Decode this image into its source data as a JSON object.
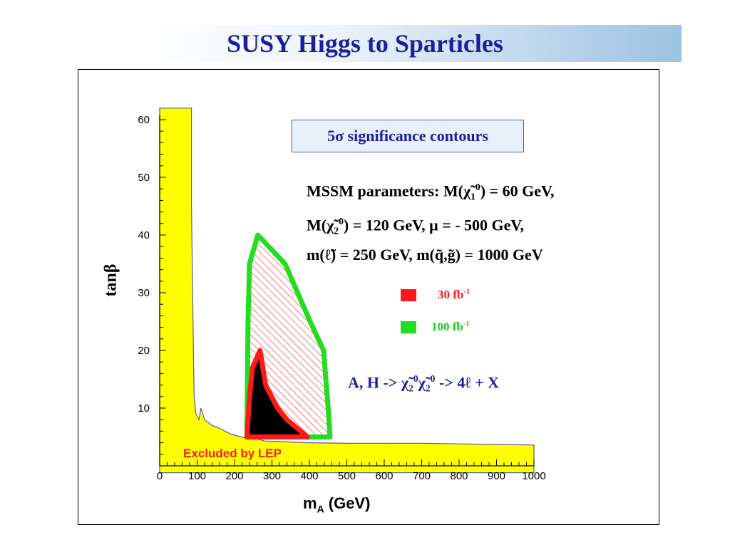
{
  "slide": {
    "title": "SUSY Higgs to Sparticles"
  },
  "annotations": {
    "significance": "5σ significance contours",
    "params_line1_a": "MSSM parameters: M(",
    "chi1": "χ̃",
    "chi1_sub": "1",
    "chi1_sup": "0",
    "params_line1_b": ") = 60 GeV,",
    "params_line2_a": "M(",
    "chi2": "χ̃",
    "chi2_sub": "2",
    "chi2_sup": "0",
    "params_line2_b": ") = 120 GeV, μ = - 500 GeV,",
    "params_line3": "m(ℓ̃) = 250 GeV, m(q̃,g̃) = 1000 GeV",
    "process_a": "A, H -> ",
    "process_chi": "χ̃",
    "process_sub": "2",
    "process_sup": "0",
    "process_b": " -> 4ℓ + X",
    "excluded": "Excluded by LEP"
  },
  "legend": [
    {
      "label": "30 fb",
      "sup": "-1",
      "color": "#ff1a1a"
    },
    {
      "label": "100 fb",
      "sup": "-1",
      "color": "#22dd22"
    }
  ],
  "colors": {
    "excluded_fill": "#ffff00",
    "contour_30": "#ff1a1a",
    "contour_100": "#22dd22",
    "core_fill": "#000000",
    "hatch": "#ff2a2a",
    "title": "#1b1f9e"
  },
  "chart_data": {
    "type": "area",
    "xlabel": "m",
    "xlabel_sub": "A",
    "xlabel_unit": " (GeV)",
    "ylabel": "tanβ",
    "xlim": [
      0,
      1000
    ],
    "ylim": [
      0,
      60
    ],
    "x_ticks": [
      0,
      100,
      200,
      300,
      400,
      500,
      600,
      700,
      800,
      900,
      1000
    ],
    "y_ticks": [
      10,
      20,
      30,
      40,
      50,
      60
    ],
    "grid": false,
    "regions": [
      {
        "name": "Excluded by LEP",
        "style": "yellow-fill",
        "points": [
          [
            0,
            62
          ],
          [
            85,
            62
          ],
          [
            85,
            45
          ],
          [
            88,
            30
          ],
          [
            90,
            20
          ],
          [
            92,
            12
          ],
          [
            97,
            9
          ],
          [
            105,
            8
          ],
          [
            110,
            10
          ],
          [
            120,
            8
          ],
          [
            140,
            7
          ],
          [
            160,
            6.5
          ],
          [
            190,
            5.5
          ],
          [
            230,
            4.8
          ],
          [
            260,
            4.7
          ],
          [
            280,
            4.3
          ],
          [
            320,
            4.2
          ],
          [
            400,
            4.0
          ],
          [
            500,
            3.9
          ],
          [
            700,
            3.9
          ],
          [
            900,
            3.7
          ],
          [
            1000,
            3.6
          ],
          [
            1000,
            -1.2
          ],
          [
            0,
            -1.2
          ]
        ]
      },
      {
        "name": "100 fb-1",
        "style": "green-outline-red-hatch",
        "points": [
          [
            233,
            5
          ],
          [
            236,
            25
          ],
          [
            240,
            35
          ],
          [
            262,
            40
          ],
          [
            335,
            35
          ],
          [
            402,
            25
          ],
          [
            438,
            20
          ],
          [
            450,
            10
          ],
          [
            455,
            5
          ]
        ]
      },
      {
        "name": "30 fb-1",
        "style": "red-outline-black-fill",
        "points": [
          [
            233,
            5
          ],
          [
            240,
            12
          ],
          [
            248,
            17
          ],
          [
            268,
            20
          ],
          [
            283,
            14
          ],
          [
            315,
            10
          ],
          [
            340,
            8
          ],
          [
            395,
            5
          ]
        ]
      }
    ]
  }
}
